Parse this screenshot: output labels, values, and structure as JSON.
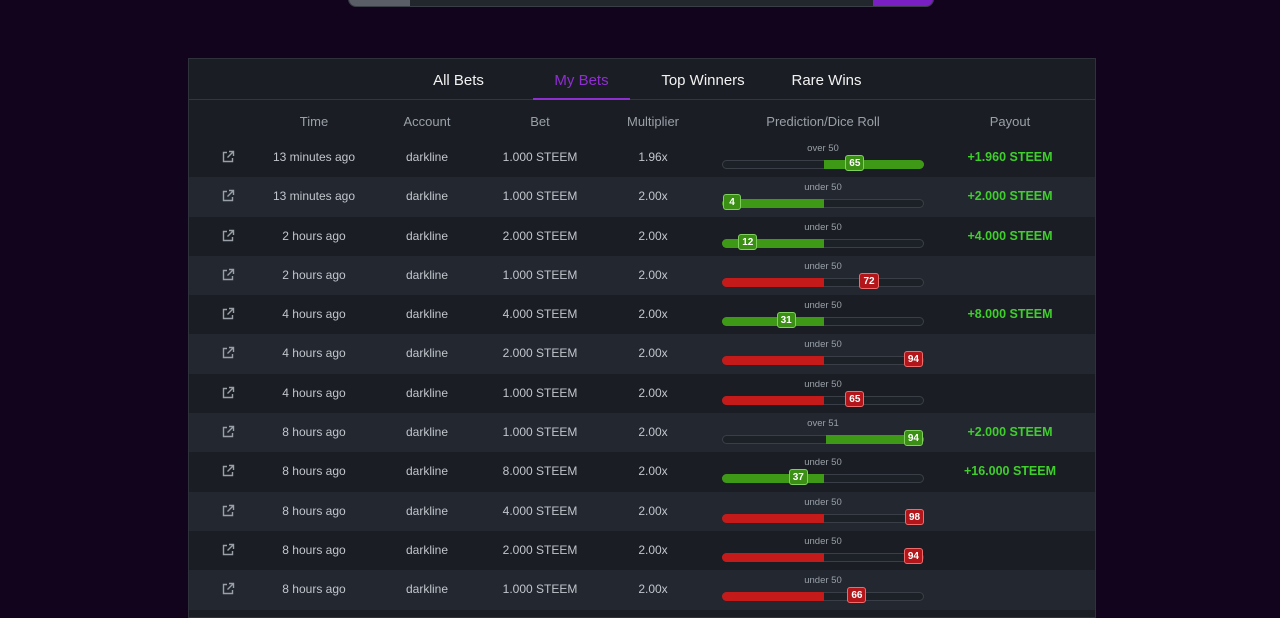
{
  "tabs": [
    {
      "label": "All Bets",
      "active": false
    },
    {
      "label": "My Bets",
      "active": true
    },
    {
      "label": "Top Winners",
      "active": false
    },
    {
      "label": "Rare Wins",
      "active": false
    }
  ],
  "columns": [
    "Time",
    "Account",
    "Bet",
    "Multiplier",
    "Prediction/Dice Roll",
    "Payout"
  ],
  "colors": {
    "win": "#3fcf2c",
    "lose": "#c41a1a",
    "accent": "#8f2ed1"
  },
  "icons": {
    "row_link": "external-link-icon"
  },
  "rows": [
    {
      "time": "13 minutes ago",
      "account": "darkline",
      "bet": "1.000 STEEM",
      "multiplier": "1.96x",
      "direction": "over",
      "target": 50,
      "prediction": "over 50",
      "roll": "65",
      "payout": "+1.960 STEEM"
    },
    {
      "time": "13 minutes ago",
      "account": "darkline",
      "bet": "1.000 STEEM",
      "multiplier": "2.00x",
      "direction": "under",
      "target": 50,
      "prediction": "under 50",
      "roll": "4",
      "payout": "+2.000 STEEM"
    },
    {
      "time": "2 hours ago",
      "account": "darkline",
      "bet": "2.000 STEEM",
      "multiplier": "2.00x",
      "direction": "under",
      "target": 50,
      "prediction": "under 50",
      "roll": "12",
      "payout": "+4.000 STEEM"
    },
    {
      "time": "2 hours ago",
      "account": "darkline",
      "bet": "1.000 STEEM",
      "multiplier": "2.00x",
      "direction": "under",
      "target": 50,
      "prediction": "under 50",
      "roll": "72",
      "payout": ""
    },
    {
      "time": "4 hours ago",
      "account": "darkline",
      "bet": "4.000 STEEM",
      "multiplier": "2.00x",
      "direction": "under",
      "target": 50,
      "prediction": "under 50",
      "roll": "31",
      "payout": "+8.000 STEEM"
    },
    {
      "time": "4 hours ago",
      "account": "darkline",
      "bet": "2.000 STEEM",
      "multiplier": "2.00x",
      "direction": "under",
      "target": 50,
      "prediction": "under 50",
      "roll": "94",
      "payout": ""
    },
    {
      "time": "4 hours ago",
      "account": "darkline",
      "bet": "1.000 STEEM",
      "multiplier": "2.00x",
      "direction": "under",
      "target": 50,
      "prediction": "under 50",
      "roll": "65",
      "payout": ""
    },
    {
      "time": "8 hours ago",
      "account": "darkline",
      "bet": "1.000 STEEM",
      "multiplier": "2.00x",
      "direction": "over",
      "target": 51,
      "prediction": "over 51",
      "roll": "94",
      "payout": "+2.000 STEEM"
    },
    {
      "time": "8 hours ago",
      "account": "darkline",
      "bet": "8.000 STEEM",
      "multiplier": "2.00x",
      "direction": "under",
      "target": 50,
      "prediction": "under 50",
      "roll": "37",
      "payout": "+16.000 STEEM"
    },
    {
      "time": "8 hours ago",
      "account": "darkline",
      "bet": "4.000 STEEM",
      "multiplier": "2.00x",
      "direction": "under",
      "target": 50,
      "prediction": "under 50",
      "roll": "98",
      "payout": ""
    },
    {
      "time": "8 hours ago",
      "account": "darkline",
      "bet": "2.000 STEEM",
      "multiplier": "2.00x",
      "direction": "under",
      "target": 50,
      "prediction": "under 50",
      "roll": "94",
      "payout": ""
    },
    {
      "time": "8 hours ago",
      "account": "darkline",
      "bet": "1.000 STEEM",
      "multiplier": "2.00x",
      "direction": "under",
      "target": 50,
      "prediction": "under 50",
      "roll": "66",
      "payout": ""
    }
  ]
}
